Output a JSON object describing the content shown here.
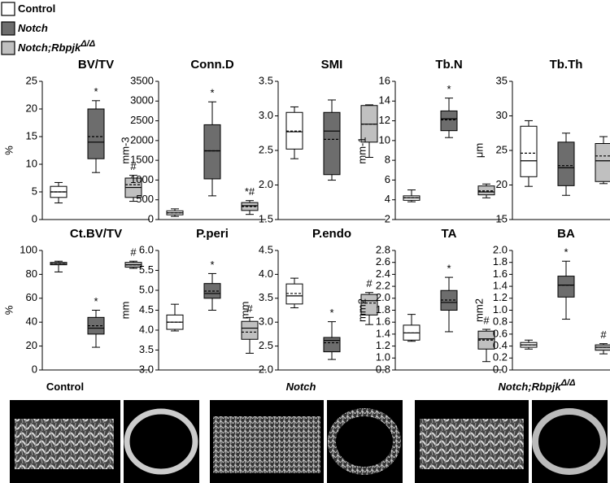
{
  "legend": [
    {
      "name": "Control",
      "color": "#ffffff",
      "style": "normal"
    },
    {
      "name": "Notch",
      "color": "#6d6d6d",
      "style": "italic"
    },
    {
      "name": "Notch;Rbpjk",
      "sup": "Δ/Δ",
      "color": "#c0c0c0",
      "style": "italic"
    }
  ],
  "chart_data": [
    {
      "type": "box",
      "title": "BV/TV",
      "ylabel": "%",
      "ylim": [
        0,
        25
      ],
      "yticks": [
        0,
        5,
        10,
        15,
        20,
        25
      ],
      "boxes": [
        {
          "color": "#ffffff",
          "min": 3,
          "q1": 4,
          "median": 5,
          "q3": 6,
          "max": 6.7,
          "mean": 5,
          "label": null
        },
        {
          "color": "#6d6d6d",
          "min": 8.5,
          "q1": 11,
          "median": 14,
          "q3": 20,
          "max": 21.5,
          "mean": 15,
          "label": "*"
        },
        {
          "color": "#c0c0c0",
          "min": 3.3,
          "q1": 4,
          "median": 5.8,
          "q3": 7.5,
          "max": 8,
          "mean": 6.3,
          "label": "#"
        }
      ]
    },
    {
      "type": "box",
      "title": "Conn.D",
      "ylabel": "mm-3",
      "ylim": [
        0,
        3500
      ],
      "yticks": [
        0,
        500,
        1000,
        1500,
        2000,
        2500,
        3000,
        3500
      ],
      "boxes": [
        {
          "color": "#ffffff",
          "min": 80,
          "q1": 120,
          "median": 170,
          "q3": 220,
          "max": 270,
          "mean": 170,
          "label": null
        },
        {
          "color": "#6d6d6d",
          "min": 600,
          "q1": 1030,
          "median": 1740,
          "q3": 2400,
          "max": 2980,
          "mean": 1740,
          "label": "*"
        },
        {
          "color": "#c0c0c0",
          "min": 130,
          "q1": 230,
          "median": 350,
          "q3": 430,
          "max": 480,
          "mean": 330,
          "label": "*#"
        }
      ]
    },
    {
      "type": "box",
      "title": "SMI",
      "ylim": [
        1.5,
        3.5
      ],
      "yticks": [
        1.5,
        {
          "value": 2,
          "label": "2.0"
        },
        2.5,
        {
          "value": 3,
          "label": "3.0"
        },
        3.5
      ],
      "boxes": [
        {
          "color": "#ffffff",
          "min": 2.38,
          "q1": 2.52,
          "median": 2.77,
          "q3": 3.05,
          "max": 3.13,
          "mean": 2.78,
          "label": null
        },
        {
          "color": "#6d6d6d",
          "min": 2.07,
          "q1": 2.15,
          "median": 2.78,
          "q3": 3.05,
          "max": 3.23,
          "mean": 2.66,
          "label": null
        },
        {
          "color": "#c0c0c0",
          "min": 2.4,
          "q1": 2.62,
          "median": 2.88,
          "q3": 3.15,
          "max": 3.16,
          "mean": 2.88,
          "label": null
        }
      ]
    },
    {
      "type": "box",
      "title": "Tb.N",
      "ylabel": "mm-1",
      "ylim": [
        2,
        16
      ],
      "yticks": [
        2,
        4,
        6,
        8,
        10,
        12,
        14,
        16
      ],
      "boxes": [
        {
          "color": "#ffffff",
          "min": 3.8,
          "q1": 3.95,
          "median": 4.2,
          "q3": 4.4,
          "max": 5,
          "mean": 4.2,
          "label": null
        },
        {
          "color": "#6d6d6d",
          "min": 10.3,
          "q1": 11,
          "median": 12.2,
          "q3": 13,
          "max": 14.3,
          "mean": 12.1,
          "label": "*"
        },
        {
          "color": "#c0c0c0",
          "min": 4.2,
          "q1": 4.5,
          "median": 4.8,
          "q3": 5.4,
          "max": 5.6,
          "mean": 4.9,
          "label": null
        }
      ]
    },
    {
      "type": "box",
      "title": "Tb.Th",
      "ylabel": "μm",
      "ylim": [
        15,
        35
      ],
      "yticks": [
        15,
        20,
        25,
        30,
        35
      ],
      "boxes": [
        {
          "color": "#ffffff",
          "min": 19.8,
          "q1": 21.2,
          "median": 23.5,
          "q3": 28.5,
          "max": 29.3,
          "mean": 24.6,
          "label": null
        },
        {
          "color": "#6d6d6d",
          "min": 18.5,
          "q1": 19.9,
          "median": 22.5,
          "q3": 26.2,
          "max": 27.5,
          "mean": 22.8,
          "label": null
        },
        {
          "color": "#c0c0c0",
          "min": 20.2,
          "q1": 20.5,
          "median": 23.5,
          "q3": 26,
          "max": 27,
          "mean": 24.2,
          "label": null
        }
      ]
    },
    {
      "type": "box",
      "title": "Ct.BV/TV",
      "ylabel": "%",
      "ylim": [
        0,
        100
      ],
      "yticks": [
        0,
        20,
        40,
        60,
        80,
        100
      ],
      "boxes": [
        {
          "color": "#ffffff",
          "min": 82,
          "q1": 88,
          "median": 89,
          "q3": 90,
          "max": 91,
          "mean": 89,
          "label": null
        },
        {
          "color": "#6d6d6d",
          "min": 19,
          "q1": 30,
          "median": 35,
          "q3": 44,
          "max": 50,
          "mean": 37,
          "label": "*"
        },
        {
          "color": "#c0c0c0",
          "min": 85,
          "q1": 86,
          "median": 88,
          "q3": 90,
          "max": 91,
          "mean": 88,
          "label": "#"
        }
      ]
    },
    {
      "type": "box",
      "title": "P.peri",
      "ylabel": "mm",
      "ylim": [
        3,
        6
      ],
      "yticks": [
        {
          "value": 3,
          "label": "3.0"
        },
        3.5,
        {
          "value": 4,
          "label": "4.0"
        },
        4.5,
        {
          "value": 5,
          "label": "5.0"
        },
        5.5,
        {
          "value": 6,
          "label": "6.0"
        }
      ],
      "boxes": [
        {
          "color": "#ffffff",
          "min": 3.98,
          "q1": 4.02,
          "median": 4.2,
          "q3": 4.38,
          "max": 4.65,
          "mean": 4.2,
          "label": null
        },
        {
          "color": "#6d6d6d",
          "min": 4.5,
          "q1": 4.8,
          "median": 4.92,
          "q3": 5.17,
          "max": 5.42,
          "mean": 4.98,
          "label": "*"
        },
        {
          "color": "#c0c0c0",
          "min": 3.42,
          "q1": 3.77,
          "median": 4.05,
          "q3": 4.22,
          "max": 4.32,
          "mean": 3.95,
          "label": "#"
        }
      ]
    },
    {
      "type": "box",
      "title": "P.endo",
      "ylabel": "mm",
      "ylim": [
        2,
        4.5
      ],
      "yticks": [
        {
          "value": 2,
          "label": "2.0"
        },
        2.5,
        {
          "value": 3,
          "label": "3.0"
        },
        3.5,
        {
          "value": 4,
          "label": "4.0"
        },
        4.5
      ],
      "boxes": [
        {
          "color": "#ffffff",
          "min": 3.3,
          "q1": 3.38,
          "median": 3.55,
          "q3": 3.8,
          "max": 3.92,
          "mean": 3.6,
          "label": null
        },
        {
          "color": "#6d6d6d",
          "min": 2.22,
          "q1": 2.38,
          "median": 2.62,
          "q3": 2.68,
          "max": 3.01,
          "mean": 2.57,
          "label": "*"
        },
        {
          "color": "#c0c0c0",
          "min": 2.95,
          "q1": 3.15,
          "median": 3.45,
          "q3": 3.58,
          "max": 3.62,
          "mean": 3.4,
          "label": "#"
        }
      ]
    },
    {
      "type": "box",
      "title": "TA",
      "ylabel": "mm2",
      "ylim": [
        0.8,
        2.8
      ],
      "yticks": [
        0.8,
        {
          "value": 1,
          "label": "1.0"
        },
        1.2,
        1.4,
        1.6,
        1.8,
        {
          "value": 2,
          "label": "2.0"
        },
        2.2,
        2.4,
        2.6,
        2.8
      ],
      "boxes": [
        {
          "color": "#ffffff",
          "min": 1.28,
          "q1": 1.3,
          "median": 1.42,
          "q3": 1.55,
          "max": 1.73,
          "mean": 1.42,
          "label": null
        },
        {
          "color": "#6d6d6d",
          "min": 1.44,
          "q1": 1.8,
          "median": 1.93,
          "q3": 2.13,
          "max": 2.35,
          "mean": 1.97,
          "label": "*"
        },
        {
          "color": "#c0c0c0",
          "min": 0.94,
          "q1": 1.15,
          "median": 1.32,
          "q3": 1.45,
          "max": 1.48,
          "mean": 1.3,
          "label": "#"
        }
      ]
    },
    {
      "type": "box",
      "title": "BA",
      "ylabel": "mm2",
      "ylim": [
        0,
        2
      ],
      "yticks": [
        {
          "value": 0,
          "label": "0.0"
        },
        0.2,
        0.4,
        0.6,
        0.8,
        {
          "value": 1,
          "label": "1.0"
        },
        1.2,
        1.4,
        1.6,
        1.8,
        {
          "value": 2,
          "label": "2.0"
        }
      ],
      "boxes": [
        {
          "color": "#ffffff",
          "min": 0.35,
          "q1": 0.38,
          "median": 0.42,
          "q3": 0.46,
          "max": 0.5,
          "mean": 0.42,
          "label": null
        },
        {
          "color": "#6d6d6d",
          "min": 0.85,
          "q1": 1.22,
          "median": 1.42,
          "q3": 1.57,
          "max": 1.82,
          "mean": 1.42,
          "label": "*"
        },
        {
          "color": "#c0c0c0",
          "min": 0.27,
          "q1": 0.33,
          "median": 0.38,
          "q3": 0.42,
          "max": 0.44,
          "mean": 0.38,
          "label": "#"
        }
      ]
    }
  ],
  "images": [
    {
      "name": "Control",
      "style": "normal"
    },
    {
      "name": "Notch",
      "style": "italic"
    },
    {
      "name": "Notch;Rbpjk",
      "sup": "Δ/Δ",
      "style": "italic"
    }
  ]
}
